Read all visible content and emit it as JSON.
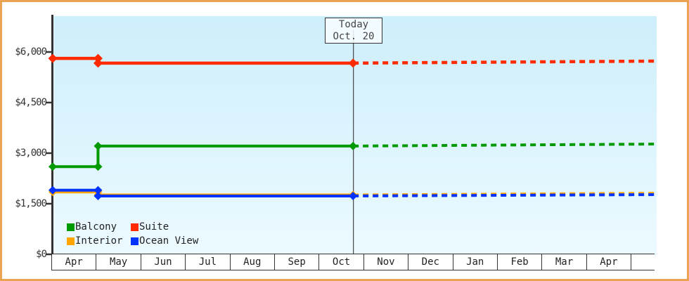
{
  "window": {
    "border_color": "#eaa353"
  },
  "chart_data": {
    "type": "line",
    "title": "",
    "xlabel": "",
    "ylabel": "",
    "x_axis": {
      "months": [
        "Apr",
        "May",
        "Jun",
        "Jul",
        "Aug",
        "Sep",
        "Oct",
        "Nov",
        "Dec",
        "Jan",
        "Feb",
        "Mar",
        "Apr",
        ""
      ],
      "months_span": 13.3
    },
    "y_axis": {
      "tick_labels": [
        "$6,000",
        "$4,500",
        "$3,000",
        "$1,500",
        "$0"
      ],
      "tick_values": [
        6000,
        4500,
        3000,
        1500,
        0
      ],
      "range": [
        0,
        7100
      ],
      "grid": false
    },
    "today_marker": {
      "line1": "Today",
      "line2": "Oct. 20",
      "months_from_start": 6.63
    },
    "series": [
      {
        "name": "Interior",
        "color": "#ffa500",
        "history": [
          [
            0,
            1850
          ],
          [
            1,
            1850
          ],
          [
            1,
            1760
          ],
          [
            6.63,
            1760
          ]
        ],
        "forecast": [
          [
            6.63,
            1760
          ],
          [
            13.3,
            1810
          ]
        ]
      },
      {
        "name": "Ocean View",
        "color": "#0033ff",
        "history": [
          [
            0,
            1900
          ],
          [
            1,
            1900
          ],
          [
            1,
            1730
          ],
          [
            6.63,
            1730
          ]
        ],
        "forecast": [
          [
            6.63,
            1730
          ],
          [
            13.3,
            1770
          ]
        ]
      },
      {
        "name": "Balcony",
        "color": "#009900",
        "history": [
          [
            0,
            2600
          ],
          [
            1,
            2600
          ],
          [
            1,
            3210
          ],
          [
            6.63,
            3210
          ]
        ],
        "forecast": [
          [
            6.63,
            3210
          ],
          [
            13.3,
            3270
          ]
        ]
      },
      {
        "name": "Suite",
        "color": "#ff2a00",
        "history": [
          [
            0,
            5810
          ],
          [
            1,
            5810
          ],
          [
            1,
            5670
          ],
          [
            6.63,
            5670
          ]
        ],
        "forecast": [
          [
            6.63,
            5670
          ],
          [
            13.3,
            5730
          ]
        ]
      }
    ],
    "legend_items": [
      {
        "label": "Balcony",
        "color": "#009900"
      },
      {
        "label": "Suite",
        "color": "#ff2a00"
      },
      {
        "label": "Interior",
        "color": "#ffa500"
      },
      {
        "label": "Ocean View",
        "color": "#0033ff"
      }
    ],
    "colors": {
      "plot_bg_top": "#cdeefb",
      "plot_bg_bottom": "#ecfaff",
      "axis": "#333333",
      "today_line": "#444444"
    },
    "legend_position": "bottom-left"
  }
}
